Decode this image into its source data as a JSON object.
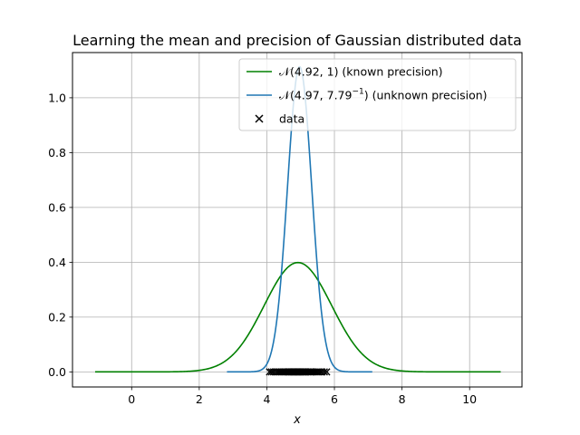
{
  "chart_data": {
    "type": "line",
    "title": "Learning the mean and precision of Gaussian distributed data",
    "xlabel": "x",
    "ylabel": "",
    "xlim": [
      -1.75,
      11.55
    ],
    "ylim": [
      -0.055,
      1.165
    ],
    "xticks": [
      0,
      2,
      4,
      6,
      8,
      10
    ],
    "xtick_labels": [
      "0",
      "2",
      "4",
      "6",
      "8",
      "10"
    ],
    "yticks": [
      0.0,
      0.2,
      0.4,
      0.6,
      0.8,
      1.0
    ],
    "ytick_labels": [
      "0.0",
      "0.2",
      "0.4",
      "0.6",
      "0.8",
      "1.0"
    ],
    "grid": true,
    "legend_position": "top-right",
    "series": [
      {
        "name": "known precision",
        "legend_prefix": "𝒩(4.92, 1) (known precision)",
        "kind": "gaussian",
        "mean": 4.92,
        "precision": 1,
        "x_range": [
          -1.08,
          10.92
        ],
        "color": "#008000"
      },
      {
        "name": "unknown precision",
        "legend_main": "𝒩(4.97, 7.79",
        "legend_sup": "−1",
        "legend_tail": ") (unknown precision)",
        "kind": "gaussian",
        "mean": 4.97,
        "precision": 7.79,
        "x_range": [
          2.82,
          7.12
        ],
        "color": "#1f77b4"
      }
    ],
    "scatter": {
      "name": "data",
      "marker": "x",
      "color": "#000000",
      "y": 0,
      "x": [
        4.08,
        4.14,
        4.2,
        4.27,
        4.33,
        4.38,
        4.42,
        4.47,
        4.51,
        4.55,
        4.58,
        4.62,
        4.65,
        4.68,
        4.71,
        4.74,
        4.77,
        4.8,
        4.83,
        4.86,
        4.89,
        4.92,
        4.95,
        4.98,
        5.01,
        5.04,
        5.07,
        5.1,
        5.13,
        5.16,
        5.2,
        5.24,
        5.28,
        5.32,
        5.36,
        5.41,
        5.46,
        5.51,
        5.57,
        5.63,
        5.7,
        5.77
      ]
    }
  }
}
